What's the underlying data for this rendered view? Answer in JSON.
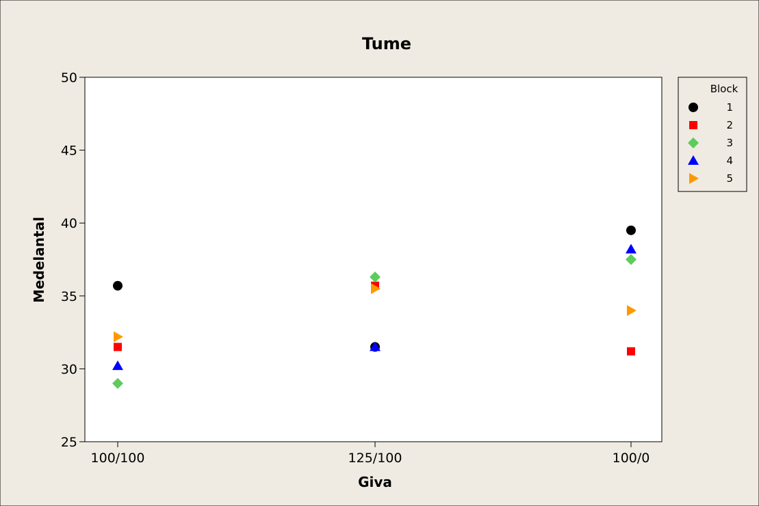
{
  "chart_data": {
    "type": "scatter",
    "title": "Tume",
    "xlabel": "Giva",
    "ylabel": "Medelantal",
    "categories": [
      "100/100",
      "125/100",
      "100/0"
    ],
    "ylim": [
      25,
      50
    ],
    "yticks": [
      25,
      30,
      35,
      40,
      45,
      50
    ],
    "grid": false,
    "legend": {
      "title": "Block",
      "position": "right"
    },
    "series": [
      {
        "name": "1",
        "marker": "circle",
        "color": "#000000",
        "values": [
          35.7,
          31.5,
          39.5
        ]
      },
      {
        "name": "2",
        "marker": "square",
        "color": "#ff0000",
        "values": [
          31.5,
          35.7,
          31.2
        ]
      },
      {
        "name": "3",
        "marker": "diamond",
        "color": "#5ccc5c",
        "values": [
          29.0,
          36.3,
          37.5
        ]
      },
      {
        "name": "4",
        "marker": "triangle",
        "color": "#0000ff",
        "values": [
          30.2,
          31.5,
          38.2
        ]
      },
      {
        "name": "5",
        "marker": "triangle-right",
        "color": "#ff9900",
        "values": [
          32.2,
          35.5,
          34.0
        ]
      }
    ]
  },
  "colors": {
    "figure_background": "#efebe2",
    "plot_background": "#ffffff",
    "frame": "#000000"
  }
}
